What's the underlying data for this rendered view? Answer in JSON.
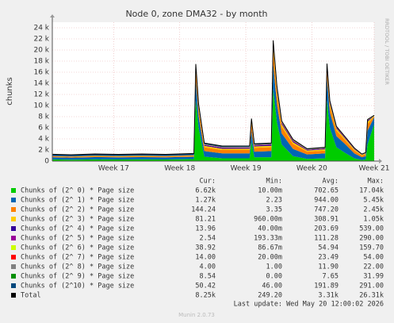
{
  "chart_data": {
    "type": "area",
    "stacked": true,
    "title": "Node 0, zone DMA32 - by month",
    "y_label": "chunks",
    "side_note": "RRDTOOL / TOBI OETIKER",
    "last_update": "Last update: Wed May 20 12:00:02 2026",
    "footer": "Munin 2.0.73",
    "stat_headers": [
      "Cur:",
      "Min:",
      "Avg:",
      "Max:"
    ],
    "grid": true,
    "x": [
      0.5,
      2.5,
      5,
      7.5,
      10,
      12.5,
      15.5,
      15.7,
      16,
      16.6,
      18.5,
      21.4,
      21.6,
      21.9,
      23.7,
      23.9,
      24.3,
      24.8,
      26,
      27.5,
      29.4,
      29.6,
      29.9,
      30.6,
      31.5,
      32.5,
      33.3,
      33.7,
      33.9,
      34.6
    ],
    "xlim": [
      0.5,
      34.6
    ],
    "xticks": [
      {
        "value": 7,
        "label": "Week 17"
      },
      {
        "value": 14,
        "label": "Week 18"
      },
      {
        "value": 21,
        "label": "Week 19"
      },
      {
        "value": 28,
        "label": "Week 20"
      },
      {
        "value": 34.6,
        "label": "Week 21"
      }
    ],
    "ylim": [
      0,
      25000
    ],
    "yticks": [
      0,
      {
        "value": 2000,
        "label": "2 k"
      },
      {
        "value": 4000,
        "label": "4 k"
      },
      {
        "value": 6000,
        "label": "6 k"
      },
      {
        "value": 8000,
        "label": "8 k"
      },
      {
        "value": 10000,
        "label": "10 k"
      },
      {
        "value": 12000,
        "label": "12 k"
      },
      {
        "value": 14000,
        "label": "14 k"
      },
      {
        "value": 16000,
        "label": "16 k"
      },
      {
        "value": 18000,
        "label": "18 k"
      },
      {
        "value": 20000,
        "label": "20 k"
      },
      {
        "value": 22000,
        "label": "22 k"
      },
      {
        "value": 24000,
        "label": "24 k"
      }
    ],
    "series": [
      {
        "name": "Chunks of (2^ 0) * Page size",
        "color": "#00cc00",
        "stats": [
          "6.62k",
          "10.00m",
          "702.65",
          "17.04k"
        ],
        "values": [
          300,
          250,
          300,
          280,
          300,
          280,
          350,
          11000,
          6000,
          800,
          500,
          500,
          3500,
          700,
          700,
          13000,
          7000,
          3000,
          900,
          400,
          500,
          11000,
          6000,
          2500,
          1500,
          500,
          200,
          300,
          3000,
          6620
        ]
      },
      {
        "name": "Chunks of (2^ 1) * Page size",
        "color": "#0066b3",
        "stats": [
          "1.27k",
          "2.23",
          "944.00",
          "5.45k"
        ],
        "values": [
          400,
          380,
          420,
          400,
          420,
          400,
          430,
          3500,
          2200,
          1000,
          900,
          900,
          2000,
          1000,
          1100,
          4500,
          3200,
          2000,
          1300,
          800,
          900,
          4000,
          2800,
          2000,
          1600,
          900,
          500,
          600,
          2500,
          1270
        ]
      },
      {
        "name": "Chunks of (2^ 2) * Page size",
        "color": "#ff8000",
        "stats": [
          "144.24",
          "3.35",
          "747.20",
          "2.45k"
        ],
        "values": [
          150,
          140,
          160,
          150,
          170,
          160,
          200,
          1800,
          1100,
          700,
          600,
          600,
          1200,
          700,
          700,
          2400,
          1800,
          1200,
          900,
          500,
          500,
          1500,
          1200,
          1000,
          700,
          500,
          300,
          350,
          1200,
          144
        ]
      },
      {
        "name": "Chunks of (2^ 3) * Page size",
        "color": "#ffcc00",
        "stats": [
          "81.21",
          "960.00m",
          "308.91",
          "1.05k"
        ],
        "values": [
          50,
          50,
          60,
          55,
          60,
          55,
          60,
          500,
          350,
          250,
          220,
          230,
          400,
          250,
          250,
          1000,
          700,
          450,
          300,
          200,
          220,
          500,
          400,
          350,
          280,
          200,
          120,
          130,
          400,
          81
        ]
      },
      {
        "name": "Chunks of (2^ 4) * Page size",
        "color": "#330099",
        "stats": [
          "13.96",
          "40.00m",
          "203.69",
          "539.00"
        ],
        "values": [
          20,
          20,
          25,
          20,
          25,
          20,
          25,
          200,
          150,
          150,
          150,
          160,
          180,
          150,
          170,
          300,
          250,
          200,
          180,
          100,
          120,
          200,
          180,
          150,
          120,
          90,
          40,
          50,
          200,
          14
        ]
      },
      {
        "name": "Chunks of (2^ 5) * Page size",
        "color": "#990099",
        "stats": [
          "2.54",
          "193.33m",
          "111.28",
          "290.00"
        ],
        "values": [
          10,
          10,
          12,
          10,
          12,
          10,
          12,
          120,
          100,
          90,
          90,
          100,
          110,
          90,
          100,
          220,
          200,
          150,
          120,
          60,
          80,
          150,
          120,
          100,
          80,
          50,
          20,
          25,
          80,
          2.5
        ]
      },
      {
        "name": "Chunks of (2^ 6) * Page size",
        "color": "#ccff00",
        "stats": [
          "38.92",
          "86.67m",
          "54.94",
          "159.70"
        ],
        "values": [
          5,
          5,
          5,
          5,
          5,
          5,
          5,
          60,
          50,
          40,
          40,
          40,
          50,
          40,
          40,
          100,
          80,
          60,
          50,
          30,
          30,
          60,
          50,
          45,
          40,
          30,
          10,
          10,
          40,
          39
        ]
      },
      {
        "name": "Chunks of (2^ 7) * Page size",
        "color": "#ff0000",
        "stats": [
          "14.00",
          "20.00m",
          "23.49",
          "54.00"
        ],
        "values": [
          1,
          1,
          1,
          1,
          1,
          1,
          1,
          20,
          15,
          10,
          10,
          10,
          15,
          10,
          10,
          40,
          30,
          20,
          15,
          10,
          10,
          20,
          15,
          12,
          10,
          8,
          5,
          5,
          10,
          14
        ]
      },
      {
        "name": "Chunks of (2^ 8) * Page size",
        "color": "#808080",
        "stats": [
          "4.00",
          "1.00",
          "11.90",
          "22.00"
        ],
        "values": [
          4,
          4,
          4,
          4,
          4,
          4,
          4,
          10,
          8,
          6,
          6,
          6,
          8,
          6,
          6,
          12,
          10,
          8,
          6,
          5,
          5,
          8,
          7,
          6,
          5,
          5,
          4,
          4,
          5,
          4
        ]
      },
      {
        "name": "Chunks of (2^ 9) * Page size",
        "color": "#008f00",
        "stats": [
          "8.54",
          "0.00",
          "7.65",
          "31.99"
        ],
        "values": [
          8,
          8,
          8,
          8,
          8,
          8,
          8,
          20,
          15,
          12,
          10,
          10,
          15,
          10,
          10,
          25,
          20,
          15,
          12,
          10,
          10,
          18,
          15,
          12,
          10,
          10,
          8,
          8,
          12,
          8.5
        ]
      },
      {
        "name": "Chunks of (2^10) * Page size",
        "color": "#00487d",
        "stats": [
          "50.42",
          "46.00",
          "191.89",
          "291.00"
        ],
        "values": [
          290,
          280,
          285,
          280,
          280,
          275,
          280,
          250,
          230,
          200,
          190,
          185,
          180,
          170,
          160,
          150,
          140,
          130,
          120,
          110,
          100,
          90,
          85,
          80,
          75,
          70,
          65,
          60,
          55,
          50
        ]
      },
      {
        "name": "Total",
        "color": "#000000",
        "style": "line",
        "stats": [
          "8.25k",
          "249.20",
          "3.31k",
          "26.31k"
        ],
        "values": [
          1238,
          1148,
          1280,
          1213,
          1285,
          1218,
          1375,
          17480,
          10218,
          3258,
          2716,
          2741,
          7658,
          3126,
          3246,
          21747,
          13430,
          7233,
          3903,
          2225,
          2475,
          17546,
          10872,
          6255,
          4420,
          2363,
          1272,
          1542,
          7502,
          8247
        ]
      }
    ]
  }
}
